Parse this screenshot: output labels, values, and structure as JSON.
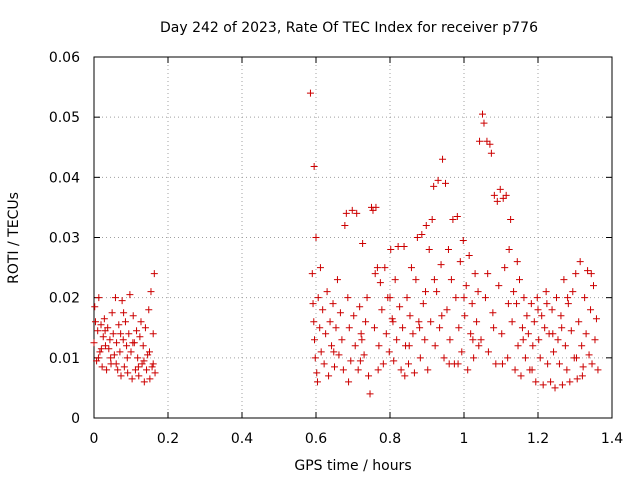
{
  "chart_data": {
    "type": "scatter",
    "title": "Day 242 of 2023, Rate Of TEC Index for receiver p776",
    "xlabel": "GPS time / hours",
    "ylabel": "ROTI / TECUs",
    "xlim": [
      0,
      1.4
    ],
    "ylim": [
      0,
      0.06
    ],
    "x_ticks": [
      0,
      0.2,
      0.4,
      0.6,
      0.8,
      1,
      1.2,
      1.4
    ],
    "x_tick_labels": [
      "0",
      "0.2",
      "0.4",
      "0.6",
      "0.8",
      "1",
      "1.2",
      "1.4"
    ],
    "y_ticks": [
      0,
      0.01,
      0.02,
      0.03,
      0.04,
      0.05,
      0.06
    ],
    "y_tick_labels": [
      "0",
      "0.01",
      "0.02",
      "0.03",
      "0.04",
      "0.05",
      "0.06"
    ],
    "grid": true,
    "marker": "+",
    "color": "#cc0000",
    "series": [
      {
        "points": [
          [
            0.0,
            0.0125
          ],
          [
            0.004,
            0.016
          ],
          [
            0.007,
            0.0095
          ],
          [
            0.01,
            0.0145
          ],
          [
            0.013,
            0.02
          ],
          [
            0.016,
            0.011
          ],
          [
            0.019,
            0.0155
          ],
          [
            0.022,
            0.0085
          ],
          [
            0.025,
            0.0135
          ],
          [
            0.028,
            0.0165
          ],
          [
            0.031,
            0.012
          ],
          [
            0.034,
            0.008
          ],
          [
            0.037,
            0.015
          ],
          [
            0.04,
            0.0115
          ],
          [
            0.043,
            0.013
          ],
          [
            0.046,
            0.009
          ],
          [
            0.049,
            0.0175
          ],
          [
            0.052,
            0.014
          ],
          [
            0.055,
            0.0105
          ],
          [
            0.058,
            0.02
          ],
          [
            0.061,
            0.0125
          ],
          [
            0.064,
            0.008
          ],
          [
            0.067,
            0.0155
          ],
          [
            0.07,
            0.011
          ],
          [
            0.073,
            0.007
          ],
          [
            0.076,
            0.0195
          ],
          [
            0.079,
            0.013
          ],
          [
            0.082,
            0.0085
          ],
          [
            0.085,
            0.016
          ],
          [
            0.088,
            0.012
          ],
          [
            0.091,
            0.0075
          ],
          [
            0.094,
            0.014
          ],
          [
            0.097,
            0.0205
          ],
          [
            0.1,
            0.011
          ],
          [
            0.103,
            0.0065
          ],
          [
            0.106,
            0.017
          ],
          [
            0.109,
            0.0125
          ],
          [
            0.112,
            0.008
          ],
          [
            0.115,
            0.0145
          ],
          [
            0.118,
            0.01
          ],
          [
            0.121,
            0.007
          ],
          [
            0.124,
            0.0135
          ],
          [
            0.127,
            0.016
          ],
          [
            0.13,
            0.009
          ],
          [
            0.133,
            0.012
          ],
          [
            0.136,
            0.006
          ],
          [
            0.139,
            0.015
          ],
          [
            0.142,
            0.008
          ],
          [
            0.145,
            0.0105
          ],
          [
            0.148,
            0.018
          ],
          [
            0.151,
            0.0065
          ],
          [
            0.154,
            0.021
          ],
          [
            0.157,
            0.0085
          ],
          [
            0.16,
            0.014
          ],
          [
            0.163,
            0.024
          ],
          [
            0.165,
            0.0075
          ],
          [
            0.002,
            0.0185
          ],
          [
            0.012,
            0.01
          ],
          [
            0.03,
            0.0145
          ],
          [
            0.045,
            0.01
          ],
          [
            0.06,
            0.009
          ],
          [
            0.072,
            0.014
          ],
          [
            0.09,
            0.01
          ],
          [
            0.105,
            0.0125
          ],
          [
            0.12,
            0.0085
          ],
          [
            0.135,
            0.0095
          ],
          [
            0.15,
            0.011
          ],
          [
            0.16,
            0.009
          ],
          [
            0.02,
            0.0115
          ],
          [
            0.08,
            0.0175
          ],
          [
            0.585,
            0.054
          ],
          [
            0.595,
            0.0418
          ],
          [
            0.6,
            0.03
          ],
          [
            0.59,
            0.024
          ],
          [
            0.592,
            0.019
          ],
          [
            0.594,
            0.016
          ],
          [
            0.596,
            0.013
          ],
          [
            0.598,
            0.01
          ],
          [
            0.602,
            0.0075
          ],
          [
            0.604,
            0.006
          ],
          [
            0.606,
            0.02
          ],
          [
            0.61,
            0.015
          ],
          [
            0.614,
            0.011
          ],
          [
            0.618,
            0.018
          ],
          [
            0.622,
            0.009
          ],
          [
            0.626,
            0.014
          ],
          [
            0.63,
            0.021
          ],
          [
            0.634,
            0.007
          ],
          [
            0.638,
            0.016
          ],
          [
            0.642,
            0.012
          ],
          [
            0.646,
            0.019
          ],
          [
            0.65,
            0.0085
          ],
          [
            0.654,
            0.015
          ],
          [
            0.658,
            0.023
          ],
          [
            0.662,
            0.0105
          ],
          [
            0.666,
            0.0175
          ],
          [
            0.67,
            0.013
          ],
          [
            0.674,
            0.008
          ],
          [
            0.678,
            0.032
          ],
          [
            0.682,
            0.034
          ],
          [
            0.686,
            0.02
          ],
          [
            0.69,
            0.015
          ],
          [
            0.694,
            0.0095
          ],
          [
            0.698,
            0.0345
          ],
          [
            0.702,
            0.017
          ],
          [
            0.706,
            0.012
          ],
          [
            0.71,
            0.034
          ],
          [
            0.714,
            0.008
          ],
          [
            0.718,
            0.0185
          ],
          [
            0.722,
            0.014
          ],
          [
            0.726,
            0.029
          ],
          [
            0.73,
            0.0105
          ],
          [
            0.734,
            0.016
          ],
          [
            0.738,
            0.02
          ],
          [
            0.742,
            0.007
          ],
          [
            0.746,
            0.004
          ],
          [
            0.75,
            0.035
          ],
          [
            0.754,
            0.0345
          ],
          [
            0.758,
            0.015
          ],
          [
            0.762,
            0.035
          ],
          [
            0.766,
            0.025
          ],
          [
            0.77,
            0.012
          ],
          [
            0.774,
            0.0225
          ],
          [
            0.778,
            0.018
          ],
          [
            0.782,
            0.009
          ],
          [
            0.786,
            0.025
          ],
          [
            0.79,
            0.014
          ],
          [
            0.794,
            0.02
          ],
          [
            0.798,
            0.011
          ],
          [
            0.802,
            0.028
          ],
          [
            0.806,
            0.0165
          ],
          [
            0.81,
            0.0095
          ],
          [
            0.814,
            0.023
          ],
          [
            0.818,
            0.013
          ],
          [
            0.822,
            0.0285
          ],
          [
            0.826,
            0.0185
          ],
          [
            0.83,
            0.008
          ],
          [
            0.834,
            0.015
          ],
          [
            0.838,
            0.0285
          ],
          [
            0.842,
            0.012
          ],
          [
            0.846,
            0.02
          ],
          [
            0.85,
            0.009
          ],
          [
            0.854,
            0.017
          ],
          [
            0.858,
            0.025
          ],
          [
            0.862,
            0.014
          ],
          [
            0.866,
            0.0075
          ],
          [
            0.87,
            0.023
          ],
          [
            0.874,
            0.03
          ],
          [
            0.878,
            0.016
          ],
          [
            0.882,
            0.01
          ],
          [
            0.886,
            0.0305
          ],
          [
            0.89,
            0.019
          ],
          [
            0.894,
            0.013
          ],
          [
            0.898,
            0.032
          ],
          [
            0.902,
            0.008
          ],
          [
            0.906,
            0.028
          ],
          [
            0.91,
            0.016
          ],
          [
            0.914,
            0.033
          ],
          [
            0.918,
            0.0385
          ],
          [
            0.922,
            0.012
          ],
          [
            0.926,
            0.021
          ],
          [
            0.93,
            0.0395
          ],
          [
            0.934,
            0.015
          ],
          [
            0.938,
            0.0255
          ],
          [
            0.942,
            0.043
          ],
          [
            0.946,
            0.01
          ],
          [
            0.95,
            0.039
          ],
          [
            0.954,
            0.018
          ],
          [
            0.958,
            0.028
          ],
          [
            0.962,
            0.013
          ],
          [
            0.966,
            0.023
          ],
          [
            0.97,
            0.033
          ],
          [
            0.974,
            0.009
          ],
          [
            0.978,
            0.02
          ],
          [
            0.982,
            0.0335
          ],
          [
            0.986,
            0.015
          ],
          [
            0.99,
            0.026
          ],
          [
            0.994,
            0.011
          ],
          [
            0.998,
            0.0295
          ],
          [
            1.002,
            0.017
          ],
          [
            1.006,
            0.022
          ],
          [
            1.01,
            0.008
          ],
          [
            1.014,
            0.027
          ],
          [
            1.018,
            0.014
          ],
          [
            1.022,
            0.019
          ],
          [
            1.026,
            0.01
          ],
          [
            1.03,
            0.024
          ],
          [
            1.034,
            0.016
          ],
          [
            1.038,
            0.021
          ],
          [
            1.042,
            0.046
          ],
          [
            1.046,
            0.013
          ],
          [
            1.05,
            0.0505
          ],
          [
            1.054,
            0.049
          ],
          [
            1.058,
            0.02
          ],
          [
            1.062,
            0.046
          ],
          [
            1.066,
            0.011
          ],
          [
            1.07,
            0.0455
          ],
          [
            1.074,
            0.044
          ],
          [
            1.078,
            0.0175
          ],
          [
            1.082,
            0.037
          ],
          [
            1.086,
            0.009
          ],
          [
            1.09,
            0.036
          ],
          [
            1.094,
            0.022
          ],
          [
            1.098,
            0.038
          ],
          [
            1.102,
            0.014
          ],
          [
            1.106,
            0.0365
          ],
          [
            1.11,
            0.025
          ],
          [
            1.114,
            0.037
          ],
          [
            1.118,
            0.01
          ],
          [
            1.122,
            0.028
          ],
          [
            1.126,
            0.033
          ],
          [
            1.13,
            0.016
          ],
          [
            1.134,
            0.021
          ],
          [
            1.138,
            0.008
          ],
          [
            1.142,
            0.019
          ],
          [
            1.146,
            0.012
          ],
          [
            1.15,
            0.023
          ],
          [
            1.154,
            0.007
          ],
          [
            1.158,
            0.015
          ],
          [
            1.162,
            0.02
          ],
          [
            1.166,
            0.01
          ],
          [
            1.17,
            0.017
          ],
          [
            1.174,
            0.014
          ],
          [
            1.178,
            0.008
          ],
          [
            1.182,
            0.019
          ],
          [
            1.186,
            0.012
          ],
          [
            1.19,
            0.016
          ],
          [
            1.194,
            0.006
          ],
          [
            1.198,
            0.02
          ],
          [
            1.202,
            0.013
          ],
          [
            1.206,
            0.01
          ],
          [
            1.21,
            0.017
          ],
          [
            1.214,
            0.0055
          ],
          [
            1.218,
            0.015
          ],
          [
            1.222,
            0.021
          ],
          [
            1.226,
            0.009
          ],
          [
            1.23,
            0.014
          ],
          [
            1.234,
            0.006
          ],
          [
            1.238,
            0.018
          ],
          [
            1.242,
            0.011
          ],
          [
            1.246,
            0.005
          ],
          [
            1.25,
            0.02
          ],
          [
            1.254,
            0.013
          ],
          [
            1.258,
            0.009
          ],
          [
            1.262,
            0.017
          ],
          [
            1.266,
            0.0055
          ],
          [
            1.27,
            0.023
          ],
          [
            1.274,
            0.012
          ],
          [
            1.278,
            0.008
          ],
          [
            1.282,
            0.019
          ],
          [
            1.286,
            0.006
          ],
          [
            1.29,
            0.0145
          ],
          [
            1.294,
            0.021
          ],
          [
            1.298,
            0.01
          ],
          [
            1.302,
            0.024
          ],
          [
            1.306,
            0.0065
          ],
          [
            1.31,
            0.016
          ],
          [
            1.314,
            0.026
          ],
          [
            1.318,
            0.012
          ],
          [
            1.322,
            0.0085
          ],
          [
            1.326,
            0.02
          ],
          [
            1.33,
            0.014
          ],
          [
            1.334,
            0.0245
          ],
          [
            1.338,
            0.0105
          ],
          [
            1.342,
            0.018
          ],
          [
            1.346,
            0.009
          ],
          [
            1.35,
            0.022
          ],
          [
            1.354,
            0.013
          ],
          [
            1.358,
            0.0165
          ],
          [
            1.362,
            0.008
          ],
          [
            0.612,
            0.025
          ],
          [
            0.648,
            0.011
          ],
          [
            0.688,
            0.006
          ],
          [
            0.724,
            0.013
          ],
          [
            0.768,
            0.008
          ],
          [
            0.808,
            0.016
          ],
          [
            0.852,
            0.012
          ],
          [
            0.896,
            0.021
          ],
          [
            0.94,
            0.017
          ],
          [
            0.984,
            0.009
          ],
          [
            1.024,
            0.013
          ],
          [
            1.064,
            0.024
          ],
          [
            1.104,
            0.009
          ],
          [
            1.144,
            0.026
          ],
          [
            1.184,
            0.008
          ],
          [
            1.224,
            0.019
          ],
          [
            1.264,
            0.015
          ],
          [
            1.304,
            0.01
          ],
          [
            1.344,
            0.024
          ],
          [
            0.72,
            0.0095
          ],
          [
            0.76,
            0.024
          ],
          [
            0.8,
            0.02
          ],
          [
            0.84,
            0.007
          ],
          [
            0.88,
            0.015
          ],
          [
            0.92,
            0.023
          ],
          [
            0.96,
            0.009
          ],
          [
            1.0,
            0.02
          ],
          [
            1.04,
            0.012
          ],
          [
            1.08,
            0.015
          ],
          [
            1.12,
            0.019
          ],
          [
            1.16,
            0.013
          ],
          [
            1.2,
            0.018
          ],
          [
            1.24,
            0.014
          ],
          [
            1.28,
            0.02
          ],
          [
            1.32,
            0.007
          ]
        ]
      }
    ]
  }
}
